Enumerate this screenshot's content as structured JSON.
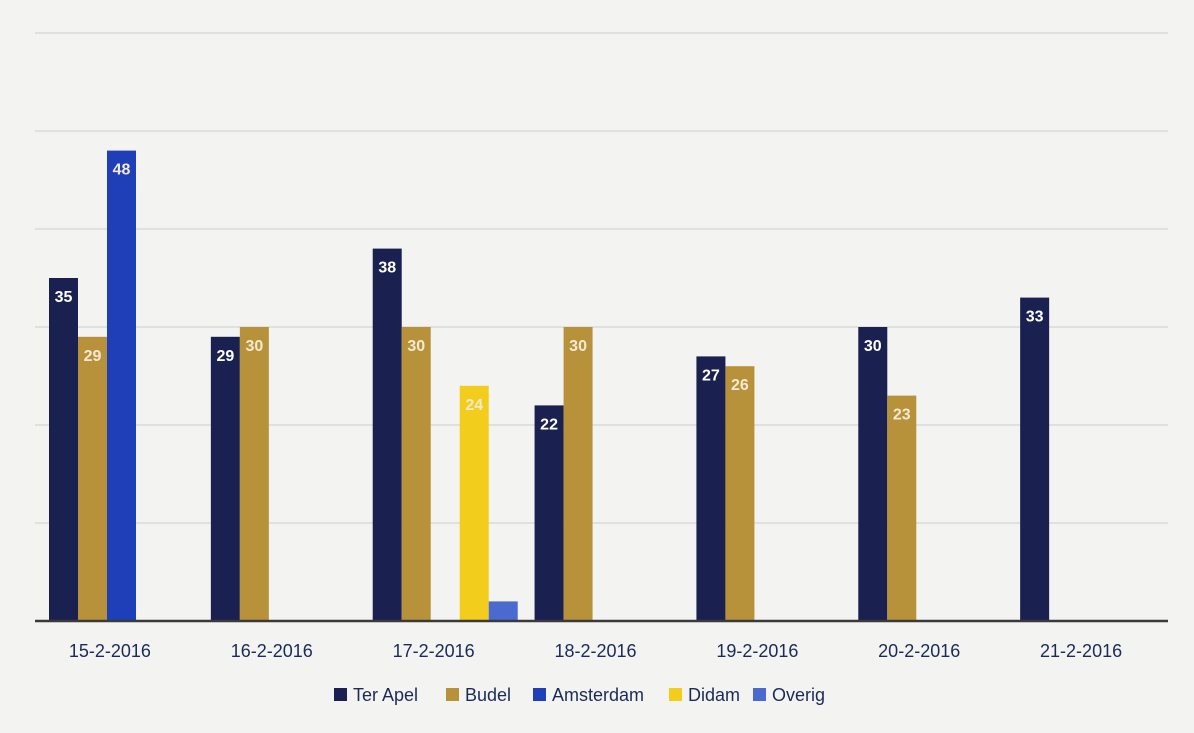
{
  "chart_data": {
    "type": "bar",
    "title": "",
    "xlabel": "",
    "ylabel": "",
    "ylim": [
      0,
      60
    ],
    "grid": true,
    "legend_position": "bottom-center",
    "categories": [
      "15-2-2016",
      "16-2-2016",
      "17-2-2016",
      "18-2-2016",
      "19-2-2016",
      "20-2-2016",
      "21-2-2016"
    ],
    "series": [
      {
        "name": "Ter Apel",
        "color": "#1a2150",
        "values": [
          35,
          29,
          38,
          22,
          27,
          30,
          33
        ]
      },
      {
        "name": "Budel",
        "color": "#b8923a",
        "values": [
          29,
          30,
          30,
          30,
          26,
          23,
          null
        ]
      },
      {
        "name": "Amsterdam",
        "color": "#1f3fb8",
        "values": [
          48,
          null,
          null,
          null,
          null,
          null,
          null
        ]
      },
      {
        "name": "Didam",
        "color": "#f2cd1c",
        "values": [
          null,
          null,
          24,
          null,
          null,
          null,
          null
        ]
      },
      {
        "name": "Overig",
        "color": "#4a6ad0",
        "values": [
          null,
          null,
          2,
          null,
          null,
          null,
          null
        ]
      }
    ],
    "data_labels": [
      {
        "series": 0,
        "category": 0,
        "text": "35"
      },
      {
        "series": 1,
        "category": 0,
        "text": "29"
      },
      {
        "series": 2,
        "category": 0,
        "text": "48"
      },
      {
        "series": 0,
        "category": 1,
        "text": "29"
      },
      {
        "series": 1,
        "category": 1,
        "text": "30"
      },
      {
        "series": 0,
        "category": 2,
        "text": "38"
      },
      {
        "series": 1,
        "category": 2,
        "text": "30"
      },
      {
        "series": 3,
        "category": 2,
        "text": "24"
      },
      {
        "series": 0,
        "category": 3,
        "text": "22"
      },
      {
        "series": 1,
        "category": 3,
        "text": "30"
      },
      {
        "series": 0,
        "category": 4,
        "text": "27"
      },
      {
        "series": 1,
        "category": 4,
        "text": "26"
      },
      {
        "series": 0,
        "category": 5,
        "text": "30"
      },
      {
        "series": 1,
        "category": 5,
        "text": "23"
      },
      {
        "series": 0,
        "category": 6,
        "text": "33"
      }
    ]
  }
}
